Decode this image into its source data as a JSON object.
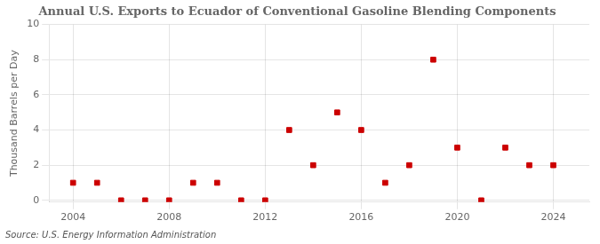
{
  "chart_data": {
    "type": "scatter",
    "title": "Annual U.S. Exports to Ecuador of Conventional Gasoline Blending Components",
    "ylabel": "Thousand Barrels per Day",
    "annotation": "Source: U.S. Energy Information Administration",
    "x": [
      2004,
      2005,
      2006,
      2007,
      2008,
      2009,
      2010,
      2011,
      2012,
      2013,
      2014,
      2015,
      2016,
      2017,
      2018,
      2019,
      2020,
      2021,
      2022,
      2023,
      2024
    ],
    "values": [
      1,
      1,
      0,
      0,
      0,
      1,
      1,
      0,
      0,
      4,
      2,
      5,
      4,
      1,
      2,
      8,
      3,
      0,
      3,
      2,
      2
    ],
    "color": "#cc0000",
    "marker": "square",
    "xlim": [
      2003.0,
      2025.5
    ],
    "ylim": [
      -0.1,
      10
    ],
    "xticks": [
      2004,
      2008,
      2012,
      2016,
      2020,
      2024
    ],
    "yticks": [
      0,
      2,
      4,
      6,
      8,
      10
    ],
    "grid": true
  }
}
